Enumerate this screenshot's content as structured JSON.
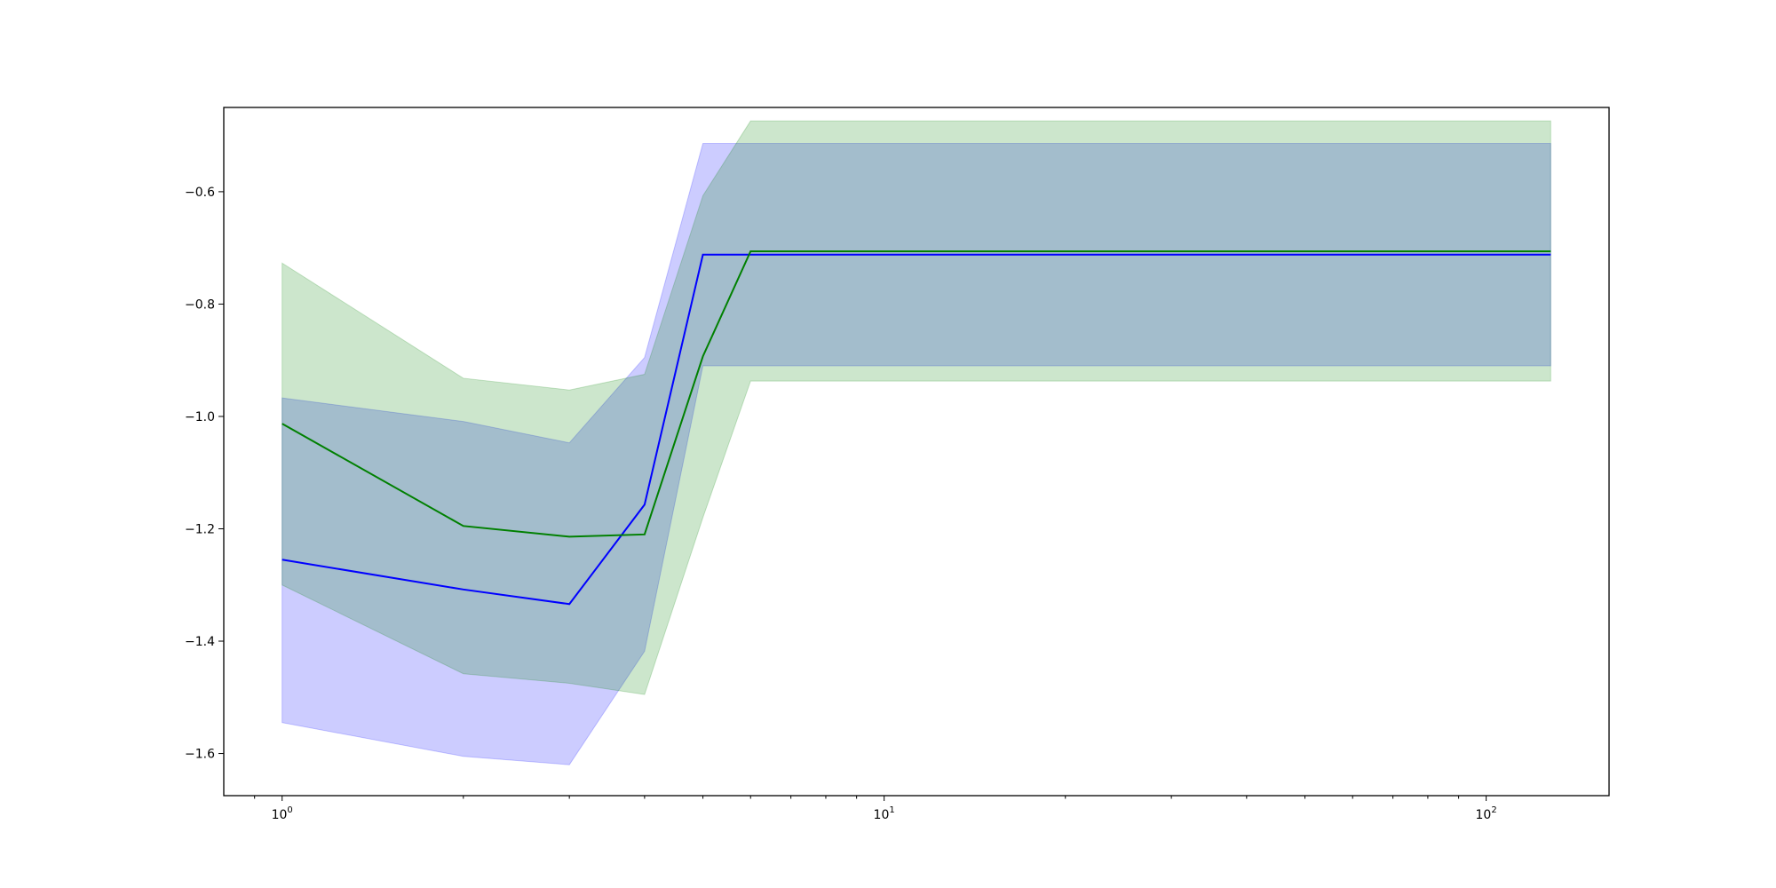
{
  "chart_data": {
    "type": "line",
    "title": "",
    "xlabel": "",
    "ylabel": "",
    "xscale": "log",
    "xlim": [
      0.8,
      160
    ],
    "ylim": [
      -1.675,
      -0.45
    ],
    "grid": false,
    "x": [
      1,
      2,
      3,
      4,
      5,
      6,
      128
    ],
    "series": [
      {
        "color": "#0000ff",
        "values": [
          -1.255,
          -1.308,
          -1.334,
          -1.157,
          -0.712,
          -0.712,
          -0.712
        ],
        "band_upper": [
          -0.967,
          -1.009,
          -1.047,
          -0.895,
          -0.514,
          -0.514,
          -0.514
        ],
        "band_lower": [
          -1.545,
          -1.605,
          -1.62,
          -1.418,
          -0.91,
          -0.91,
          -0.91
        ],
        "band_color": "#0000ff",
        "band_opacity": 0.2
      },
      {
        "color": "#008000",
        "values": [
          -1.013,
          -1.195,
          -1.214,
          -1.21,
          -0.893,
          -0.706,
          -0.706
        ],
        "band_upper": [
          -0.727,
          -0.932,
          -0.953,
          -0.925,
          -0.607,
          -0.474,
          -0.474
        ],
        "band_lower": [
          -1.3,
          -1.458,
          -1.475,
          -1.495,
          -1.18,
          -0.937,
          -0.937
        ],
        "band_color": "#008000",
        "band_opacity": 0.2
      }
    ],
    "x_tick_labels": [
      {
        "value": 1,
        "base": "10",
        "exp": "0"
      },
      {
        "value": 10,
        "base": "10",
        "exp": "1"
      },
      {
        "value": 100,
        "base": "10",
        "exp": "2"
      }
    ],
    "y_ticks": [
      -1.6,
      -1.4,
      -1.2,
      -1.0,
      -0.8,
      -0.6
    ],
    "y_tick_labels": [
      "−1.6",
      "−1.4",
      "−1.2",
      "−1.0",
      "−0.8",
      "−0.6"
    ]
  }
}
